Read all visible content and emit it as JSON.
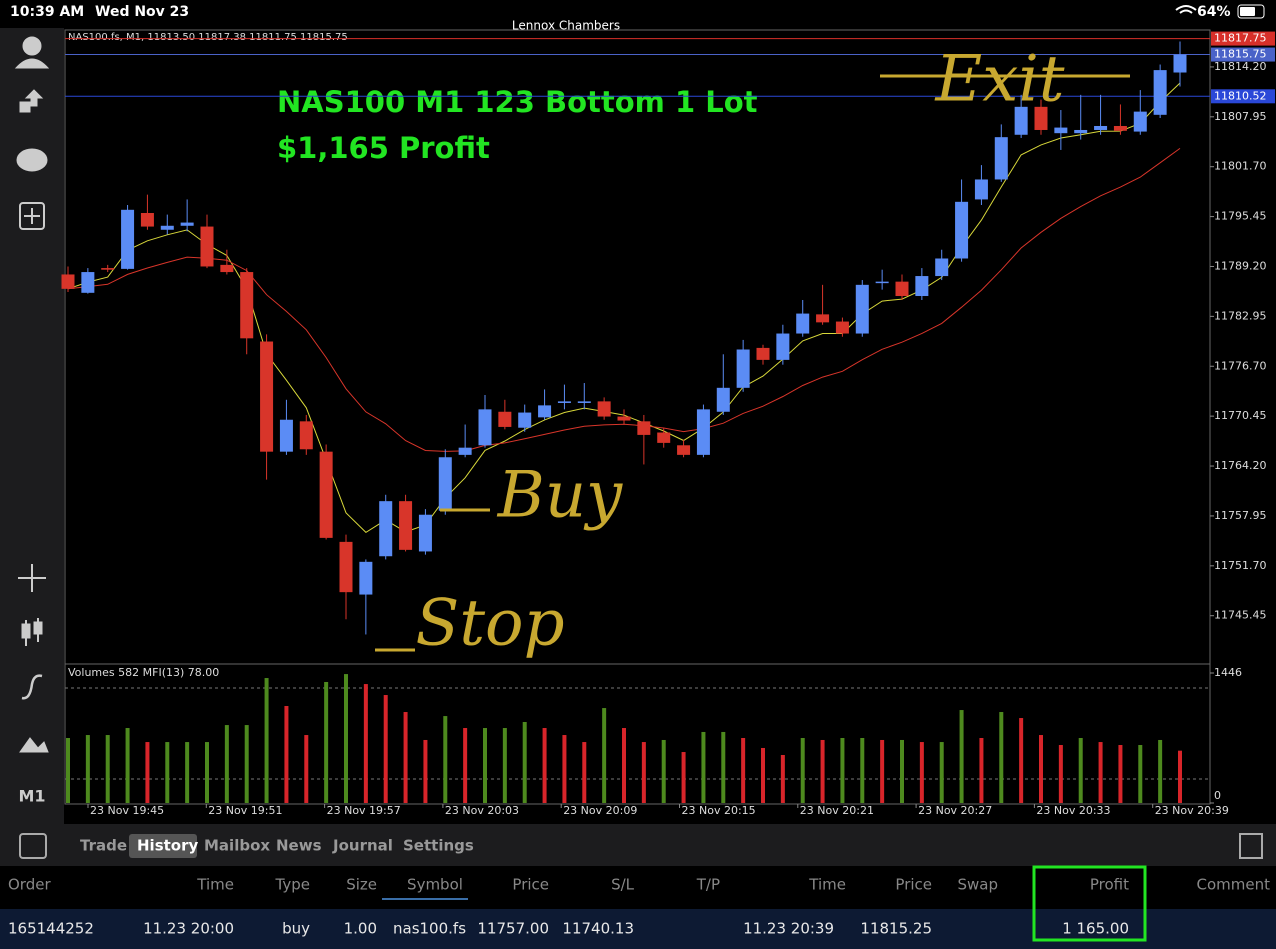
{
  "status_bar": {
    "time": "10:39 AM",
    "date": "Wed Nov 23",
    "battery": "64%"
  },
  "account_name": "Lennox Chambers",
  "timeframe": "M1",
  "chart_data": {
    "type": "candlestick",
    "header": "NAS100.fs, M1, 11813.50 11817.38 11811.75 11815.75",
    "title": "NAS100 M1 123 Bottom 1 Lot",
    "subtitle": "$1,165 Profit",
    "open": [
      11788.2,
      11785.9,
      11789.0,
      11788.9,
      11795.9,
      11793.8,
      11794.3,
      11794.2,
      11789.4,
      11788.5,
      11779.8,
      11766.0,
      11769.8,
      11766.0,
      11754.7,
      11748.1,
      11752.9,
      11759.8,
      11753.5,
      11758.6,
      11765.6,
      11766.8,
      11771.0,
      11769.0,
      11770.3,
      11772.1,
      11772.1,
      11772.3,
      11770.4,
      11769.8,
      11768.4,
      11766.8,
      11765.6,
      11771.0,
      11774.0,
      11779.0,
      11777.5,
      11780.8,
      11783.2,
      11782.3,
      11780.8,
      11787.2,
      11787.3,
      11785.5,
      11788.0,
      11790.2,
      11797.6,
      11800.1,
      11805.7,
      11809.2,
      11805.9,
      11805.9,
      11806.3,
      11806.8,
      11806.1,
      11808.2,
      11813.5
    ],
    "high": [
      11789.2,
      11789.0,
      11789.4,
      11796.9,
      11798.2,
      11795.7,
      11797.6,
      11795.7,
      11791.3,
      11789.0,
      11780.7,
      11772.5,
      11770.6,
      11766.9,
      11755.6,
      11752.5,
      11760.6,
      11760.6,
      11758.8,
      11766.3,
      11769.4,
      11773.1,
      11772.5,
      11771.9,
      11773.8,
      11774.4,
      11774.6,
      11772.8,
      11771.3,
      11770.6,
      11769.0,
      11767.5,
      11771.9,
      11778.2,
      11780.0,
      11779.4,
      11781.9,
      11785.0,
      11786.9,
      11782.8,
      11787.5,
      11788.8,
      11788.2,
      11789.0,
      11791.3,
      11800.1,
      11801.9,
      11807.0,
      11810.7,
      11810.1,
      11808.8,
      11810.7,
      11810.7,
      11809.5,
      11811.3,
      11814.5,
      11817.38
    ],
    "low": [
      11786.0,
      11785.8,
      11788.5,
      11788.8,
      11793.8,
      11793.2,
      11793.6,
      11789.0,
      11788.2,
      11778.2,
      11762.5,
      11765.6,
      11765.6,
      11755.0,
      11745.0,
      11743.1,
      11752.5,
      11753.5,
      11753.1,
      11758.1,
      11765.3,
      11766.5,
      11768.8,
      11768.5,
      11770.0,
      11771.3,
      11771.3,
      11770.0,
      11769.4,
      11764.4,
      11766.5,
      11765.3,
      11765.3,
      11770.6,
      11773.5,
      11776.9,
      11776.9,
      11780.4,
      11781.9,
      11780.4,
      11780.4,
      11786.3,
      11785.0,
      11785.0,
      11787.5,
      11789.8,
      11796.9,
      11799.8,
      11805.3,
      11805.7,
      11803.8,
      11805.1,
      11805.7,
      11805.7,
      11805.7,
      11807.8,
      11811.75
    ],
    "close": [
      11786.4,
      11788.5,
      11788.8,
      11796.3,
      11794.2,
      11794.3,
      11794.7,
      11789.2,
      11788.5,
      11780.2,
      11766.0,
      11770.0,
      11766.3,
      11755.2,
      11748.4,
      11752.2,
      11759.8,
      11753.7,
      11758.1,
      11765.3,
      11766.5,
      11771.3,
      11769.1,
      11770.9,
      11771.8,
      11772.3,
      11772.3,
      11770.4,
      11769.9,
      11768.1,
      11767.1,
      11765.6,
      11771.3,
      11774.0,
      11778.8,
      11777.5,
      11780.8,
      11783.3,
      11782.2,
      11780.8,
      11786.9,
      11787.3,
      11785.5,
      11788.0,
      11790.2,
      11797.3,
      11800.1,
      11805.4,
      11809.2,
      11806.3,
      11806.6,
      11806.3,
      11806.8,
      11806.2,
      11808.6,
      11813.8,
      11815.75
    ],
    "up_color": "#5b8cf5",
    "down_color": "#d8352a",
    "ylim": [
      11739.4,
      11818.7
    ],
    "yticks": [
      {
        "value": 11814.2,
        "label": "11814.20"
      },
      {
        "value": 11807.95,
        "label": "11807.95"
      },
      {
        "value": 11801.7,
        "label": "11801.70"
      },
      {
        "value": 11795.45,
        "label": "11795.45"
      },
      {
        "value": 11789.2,
        "label": "11789.20"
      },
      {
        "value": 11782.95,
        "label": "11782.95"
      },
      {
        "value": 11776.7,
        "label": "11776.70"
      },
      {
        "value": 11770.45,
        "label": "11770.45"
      },
      {
        "value": 11764.2,
        "label": "11764.20"
      },
      {
        "value": 11757.95,
        "label": "11757.95"
      },
      {
        "value": 11751.7,
        "label": "11751.70"
      },
      {
        "value": 11745.45,
        "label": "11745.45"
      }
    ],
    "price_lines": [
      {
        "value": 11817.75,
        "label": "11817.75",
        "color": "#d8302a"
      },
      {
        "value": 11815.75,
        "label": "11815.75",
        "color": "#4a62c8"
      },
      {
        "value": 11810.52,
        "label": "11810.52",
        "color": "#2a48d8"
      }
    ],
    "xticks": [
      "23 Nov 19:45",
      "23 Nov 19:51",
      "23 Nov 19:57",
      "23 Nov 20:03",
      "23 Nov 20:09",
      "23 Nov 20:15",
      "23 Nov 20:21",
      "23 Nov 20:27",
      "23 Nov 20:33",
      "23 Nov 20:39"
    ],
    "annotations": [
      "Exit",
      "Buy",
      "Stop"
    ],
    "volume": {
      "header": "Volumes 582 MFI(13) 78.00",
      "values": [
        723,
        756,
        756,
        834,
        678,
        678,
        678,
        678,
        867,
        867,
        1390,
        1079,
        756,
        1346,
        1434,
        1323,
        1201,
        1012,
        701,
        967,
        834,
        834,
        834,
        901,
        834,
        756,
        678,
        1056,
        834,
        678,
        701,
        567,
        790,
        790,
        723,
        612,
        534,
        723,
        701,
        723,
        723,
        701,
        701,
        678,
        678,
        1034,
        723,
        1012,
        945,
        756,
        645,
        723,
        678,
        645,
        645,
        701,
        582
      ],
      "up_color": "#4e8a1e",
      "down_color": "#d8252a",
      "ylim": [
        0,
        1446
      ],
      "yticks": [
        1446,
        0
      ]
    }
  },
  "tabs": [
    "Trade",
    "History",
    "Mailbox",
    "News",
    "Journal",
    "Settings"
  ],
  "selected_tab": 1,
  "table": {
    "columns": [
      "Order",
      "Time",
      "Type",
      "Size",
      "Symbol",
      "Price",
      "S/L",
      "T/P",
      "Time",
      "Price",
      "Swap",
      "Profit",
      "Comment"
    ],
    "row": {
      "order": "165144252",
      "open_time": "11.23 20:00",
      "type": "buy",
      "size": "1.00",
      "symbol": "nas100.fs",
      "open_price": "11757.00",
      "sl": "11740.13",
      "close_time": "11.23 20:39",
      "close_price": "11815.25",
      "profit": "1 165.00"
    }
  }
}
